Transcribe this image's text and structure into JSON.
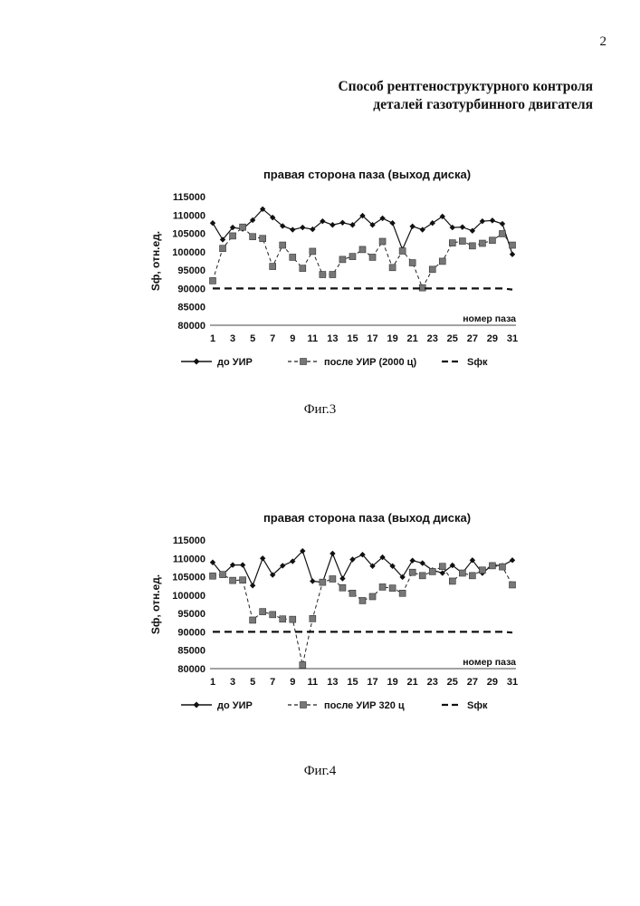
{
  "page": {
    "number": "2",
    "title_lines": [
      "Способ рентгеноструктурного контроля",
      "деталей газотурбинного двигателя"
    ]
  },
  "figures": [
    {
      "caption": "Фиг.3"
    },
    {
      "caption": "Фиг.4"
    }
  ],
  "chart_data": [
    {
      "type": "line",
      "title": "правая сторона паза (выход диска)",
      "xlabel": "номер паза",
      "ylabel": "Sф, отн.ед.",
      "ylim": [
        80000,
        115000
      ],
      "yticks": [
        80000,
        85000,
        90000,
        95000,
        100000,
        105000,
        110000,
        115000
      ],
      "x": [
        1,
        2,
        3,
        4,
        5,
        6,
        7,
        8,
        9,
        10,
        11,
        12,
        13,
        14,
        15,
        16,
        17,
        18,
        19,
        20,
        21,
        22,
        23,
        24,
        25,
        26,
        27,
        28,
        29,
        30,
        31
      ],
      "x_tick_labels": [
        1,
        3,
        5,
        7,
        9,
        11,
        13,
        15,
        17,
        19,
        21,
        23,
        25,
        27,
        29,
        31
      ],
      "legend_position": "bottom",
      "series": [
        {
          "name": "до УИР",
          "style": "solid-diamond",
          "color": "#111111",
          "values": [
            107800,
            103300,
            106600,
            106200,
            108600,
            111600,
            109300,
            107000,
            106000,
            106600,
            106100,
            108300,
            107300,
            107900,
            107300,
            109800,
            107300,
            109100,
            107800,
            100600,
            106900,
            106000,
            107800,
            109600,
            106600,
            106700,
            105700,
            108300,
            108500,
            107600,
            99300
          ]
        },
        {
          "name": "после УИР (2000 ц)",
          "style": "dashed-square",
          "color": "#777777",
          "values": [
            92100,
            100900,
            104300,
            106700,
            104100,
            103600,
            96000,
            101800,
            98500,
            95500,
            100100,
            93800,
            93800,
            97900,
            98700,
            100600,
            98500,
            102800,
            95700,
            100200,
            97000,
            90200,
            95200,
            97400,
            102400,
            102900,
            101600,
            102300,
            103100,
            104900,
            101800
          ]
        },
        {
          "name": "Sфк",
          "style": "dashed-line",
          "color": "#111111",
          "values": [
            90000,
            90000,
            90000,
            90000,
            90000,
            90000,
            90000,
            90000,
            90000,
            90000,
            90000,
            90000,
            90000,
            90000,
            90000,
            90000,
            90000,
            90000,
            90000,
            90000,
            90000,
            90000,
            90000,
            90000,
            90000,
            90000,
            90000,
            90000,
            90000,
            90000,
            89700
          ]
        }
      ]
    },
    {
      "type": "line",
      "title": "правая сторона паза (выход диска)",
      "xlabel": "номер паза",
      "ylabel": "Sф, отн.ед.",
      "ylim": [
        80000,
        115000
      ],
      "yticks": [
        80000,
        85000,
        90000,
        95000,
        100000,
        105000,
        110000,
        115000
      ],
      "x": [
        1,
        2,
        3,
        4,
        5,
        6,
        7,
        8,
        9,
        10,
        11,
        12,
        13,
        14,
        15,
        16,
        17,
        18,
        19,
        20,
        21,
        22,
        23,
        24,
        25,
        26,
        27,
        28,
        29,
        30,
        31
      ],
      "x_tick_labels": [
        1,
        3,
        5,
        7,
        9,
        11,
        13,
        15,
        17,
        19,
        21,
        23,
        25,
        27,
        29,
        31
      ],
      "legend_position": "bottom",
      "series": [
        {
          "name": "до УИР",
          "style": "solid-diamond",
          "color": "#111111",
          "values": [
            108900,
            105600,
            108200,
            108200,
            102600,
            110000,
            105500,
            108000,
            109200,
            112000,
            103800,
            103500,
            111300,
            104500,
            109700,
            111000,
            107900,
            110300,
            107900,
            104900,
            109400,
            108700,
            106800,
            106000,
            108100,
            106000,
            109500,
            106000,
            108200,
            108000,
            109500
          ]
        },
        {
          "name": "после УИР 320 ц",
          "style": "dashed-square",
          "color": "#777777",
          "values": [
            105200,
            105600,
            104000,
            104100,
            93200,
            95500,
            94700,
            93500,
            93400,
            81000,
            93600,
            103500,
            104400,
            102000,
            100500,
            98500,
            99600,
            102200,
            101900,
            100500,
            106200,
            105300,
            106400,
            107800,
            103800,
            106000,
            105300,
            106800,
            108000,
            107700,
            102800
          ]
        },
        {
          "name": "Sфк",
          "style": "dashed-line",
          "color": "#111111",
          "values": [
            90000,
            90000,
            90000,
            90000,
            90000,
            90000,
            90000,
            90000,
            90000,
            90000,
            90000,
            90000,
            90000,
            90000,
            90000,
            90000,
            90000,
            90000,
            90000,
            90000,
            90000,
            90000,
            90000,
            90000,
            90000,
            90000,
            90000,
            90000,
            90000,
            90000,
            89800
          ]
        }
      ]
    }
  ]
}
